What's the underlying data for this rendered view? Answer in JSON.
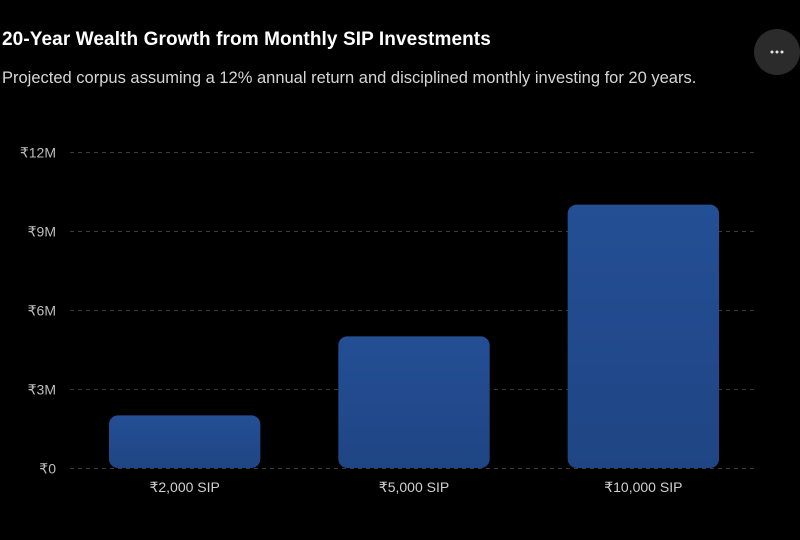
{
  "header": {
    "title": "20-Year Wealth Growth from Monthly SIP Investments",
    "subtitle": "Projected corpus assuming a 12% annual return and disciplined monthly investing for 20 years."
  },
  "menu": {
    "icon": "more-horizontal-icon"
  },
  "colors": {
    "bar_top": "#244f95",
    "bar_bottom": "#1f4584",
    "grid": "#3a3a3a",
    "background": "#000000"
  },
  "chart_data": {
    "type": "bar",
    "title": "20-Year Wealth Growth from Monthly SIP Investments",
    "subtitle": "Projected corpus assuming a 12% annual return and disciplined monthly investing for 20 years.",
    "categories": [
      "₹2,000 SIP",
      "₹5,000 SIP",
      "₹10,000 SIP"
    ],
    "values": [
      2000000,
      5000000,
      10000000
    ],
    "ylim": [
      0,
      12000000
    ],
    "yticks": [
      {
        "value": 0,
        "label": "₹0"
      },
      {
        "value": 3000000,
        "label": "₹3M"
      },
      {
        "value": 6000000,
        "label": "₹6M"
      },
      {
        "value": 9000000,
        "label": "₹9M"
      },
      {
        "value": 12000000,
        "label": "₹12M"
      }
    ],
    "grid": true,
    "legend": "none",
    "xlabel": "",
    "ylabel": ""
  }
}
